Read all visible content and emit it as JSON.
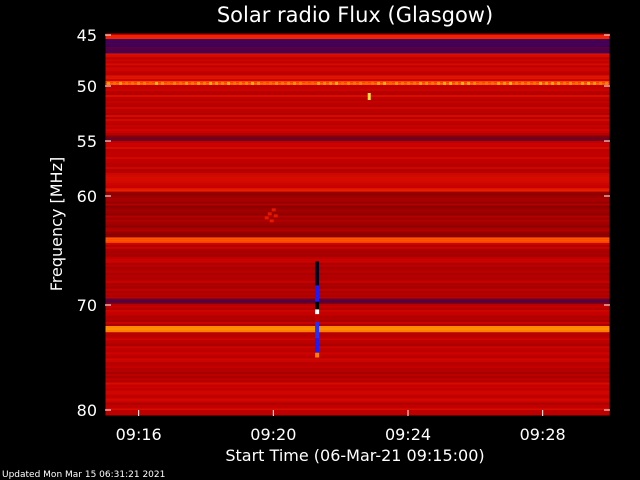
{
  "chart_data": {
    "type": "heatmap",
    "title": "Solar radio Flux (Glasgow)",
    "xlabel": "Start Time (06-Mar-21 09:15:00)",
    "ylabel": "Frequency [MHz]",
    "y_ticks": [
      "45",
      "50",
      "55",
      "60",
      "70",
      "80"
    ],
    "x_ticks": [
      "09:16",
      "09:20",
      "09:24",
      "09:28"
    ],
    "y_axis": {
      "min_mhz": 45,
      "max_mhz": 80,
      "inverted": true,
      "scale": "nonlinear"
    },
    "x_axis": {
      "start": "09:15:00",
      "end": "09:30:00"
    },
    "colormap": [
      "#3a0060",
      "#8a0000",
      "#c80000",
      "#ff3000",
      "#ff8000",
      "#ffd000",
      "#ffffff"
    ],
    "bands_mhz": [
      {
        "from": 45.0,
        "to": 45.4,
        "level": 0.45
      },
      {
        "from": 45.4,
        "to": 46.8,
        "level": 0.02
      },
      {
        "from": 46.8,
        "to": 49.5,
        "level": 0.35
      },
      {
        "from": 49.5,
        "to": 49.9,
        "level": 0.55
      },
      {
        "from": 49.9,
        "to": 54.5,
        "level": 0.32
      },
      {
        "from": 54.5,
        "to": 55.0,
        "level": 0.16
      },
      {
        "from": 55.0,
        "to": 59.3,
        "level": 0.32
      },
      {
        "from": 59.3,
        "to": 59.6,
        "level": 0.48
      },
      {
        "from": 59.6,
        "to": 63.8,
        "level": 0.22
      },
      {
        "from": 63.8,
        "to": 64.3,
        "level": 0.55
      },
      {
        "from": 64.3,
        "to": 69.4,
        "level": 0.3
      },
      {
        "from": 69.4,
        "to": 69.9,
        "level": 0.1
      },
      {
        "from": 69.9,
        "to": 72.0,
        "level": 0.3
      },
      {
        "from": 72.0,
        "to": 72.6,
        "level": 0.72
      },
      {
        "from": 72.6,
        "to": 76.0,
        "level": 0.3
      },
      {
        "from": 76.0,
        "to": 77.0,
        "level": 0.24
      },
      {
        "from": 77.0,
        "to": 80.0,
        "level": 0.32
      }
    ],
    "features": [
      {
        "kind": "burst-column",
        "time": "09:21:18",
        "from_mhz": 66.0,
        "to_mhz": 75.0
      },
      {
        "kind": "spot",
        "time": "09:22:50",
        "mhz": 51.0
      },
      {
        "kind": "blob",
        "time": "09:19:50",
        "mhz": 61.5
      }
    ]
  },
  "footer": {
    "updated": "Updated Mon Mar 15 06:31:21 2021"
  }
}
